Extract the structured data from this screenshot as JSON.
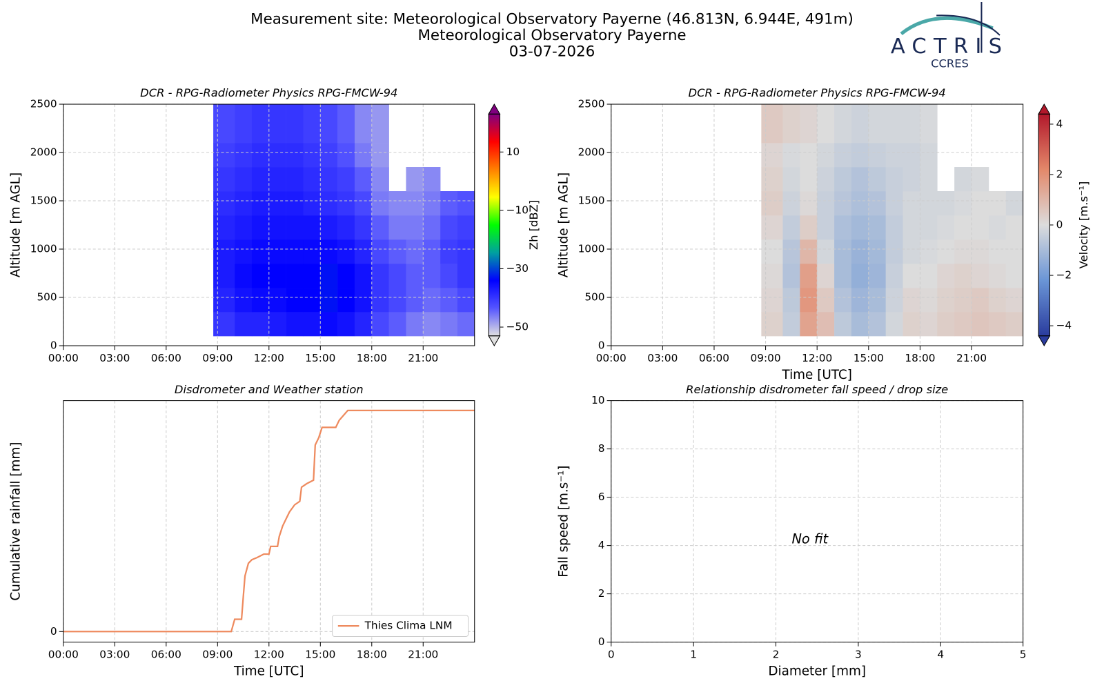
{
  "header": {
    "lines": [
      "Measurement site: Meteorological Observatory Payerne (46.813N, 6.944E, 491m)",
      "Meteorological Observatory Payerne",
      "03-07-2026"
    ]
  },
  "logo": {
    "name": "ACTRIS",
    "sub": "CCRES"
  },
  "chart_data": [
    {
      "type": "heatmap",
      "title": "DCR - RPG-Radiometer Physics RPG-FMCW-94",
      "ylabel": "Altitude [m AGL]",
      "xlim": [
        0,
        24
      ],
      "ylim": [
        0,
        2500
      ],
      "xticks": [
        {
          "value": 0,
          "label": "00:00"
        },
        {
          "value": 3,
          "label": "03:00"
        },
        {
          "value": 6,
          "label": "06:00"
        },
        {
          "value": 9,
          "label": "09:00"
        },
        {
          "value": 12,
          "label": "12:00"
        },
        {
          "value": 15,
          "label": "15:00"
        },
        {
          "value": 18,
          "label": "18:00"
        },
        {
          "value": 21,
          "label": "21:00"
        }
      ],
      "yticks": [
        0,
        500,
        1000,
        1500,
        2000,
        2500
      ],
      "grid": true,
      "x_edges": [
        8.75,
        10,
        11,
        12,
        13,
        14,
        15,
        16,
        17,
        18,
        19,
        20,
        21,
        22,
        23,
        24
      ],
      "y_edges": [
        100,
        350,
        600,
        850,
        1100,
        1350,
        1600,
        1850,
        2100,
        2500
      ],
      "z": [
        [
          -40,
          -38,
          -38,
          -37,
          -36,
          -36,
          -35,
          -36,
          -38,
          -42,
          -44,
          -46,
          -47,
          -46,
          -45
        ],
        [
          -38,
          -36,
          -35,
          -35,
          -34,
          -34,
          -33,
          -34,
          -36,
          -40,
          -42,
          -44,
          -45,
          -44,
          -42
        ],
        [
          -37,
          -35,
          -34,
          -34,
          -34,
          -34,
          -33,
          -34,
          -36,
          -40,
          -42,
          -44,
          -44,
          -42,
          -40
        ],
        [
          -37,
          -36,
          -35,
          -35,
          -35,
          -35,
          -35,
          -36,
          -38,
          -42,
          -44,
          -45,
          -44,
          -41,
          -40
        ],
        [
          -38,
          -37,
          -36,
          -36,
          -36,
          -36,
          -37,
          -38,
          -40,
          -44,
          -46,
          -46,
          -45,
          -42,
          -41
        ],
        [
          -39,
          -38,
          -37,
          -37,
          -37,
          -38,
          -39,
          -40,
          -42,
          -46,
          -47,
          -47,
          -46,
          -44,
          -43
        ],
        [
          -40,
          -39,
          -38,
          -38,
          -38,
          -39,
          -40,
          -41,
          -44,
          -47,
          null,
          -48,
          -47,
          null,
          null
        ],
        [
          -41,
          -40,
          -39,
          -39,
          -39,
          -40,
          -41,
          -43,
          -46,
          -48,
          null,
          null,
          null,
          null,
          null
        ],
        [
          -42,
          -41,
          -40,
          -40,
          -40,
          -41,
          -42,
          -44,
          -47,
          -48,
          null,
          null,
          null,
          null,
          null
        ]
      ],
      "zlim": [
        -53,
        23
      ],
      "colormap": [
        "#e0e0e0",
        "#5555ff",
        "#0000ff",
        "#00a0a0",
        "#00ff00",
        "#ffff00",
        "#ff8000",
        "#ff0000",
        "#800080"
      ],
      "colorbar_label": "Zh [dBZ]",
      "colorbar_ticks": [
        {
          "value": -50,
          "label": "−50"
        },
        {
          "value": -30,
          "label": "−30"
        },
        {
          "value": -10,
          "label": "−10"
        },
        10
      ]
    },
    {
      "type": "heatmap",
      "title": "DCR - RPG-Radiometer Physics RPG-FMCW-94",
      "ylabel": "Altitude [m AGL]",
      "xlabel": "Time [UTC]",
      "xlim": [
        0,
        24
      ],
      "ylim": [
        0,
        2500
      ],
      "xticks": [
        {
          "value": 0,
          "label": "00:00"
        },
        {
          "value": 3,
          "label": "03:00"
        },
        {
          "value": 6,
          "label": "06:00"
        },
        {
          "value": 9,
          "label": "09:00"
        },
        {
          "value": 12,
          "label": "12:00"
        },
        {
          "value": 15,
          "label": "15:00"
        },
        {
          "value": 18,
          "label": "18:00"
        },
        {
          "value": 21,
          "label": "21:00"
        }
      ],
      "yticks": [
        0,
        500,
        1000,
        1500,
        2000,
        2500
      ],
      "grid": true,
      "x_edges": [
        8.75,
        10,
        11,
        12,
        13,
        14,
        15,
        16,
        17,
        18,
        19,
        20,
        21,
        22,
        23,
        24
      ],
      "y_edges": [
        100,
        350,
        600,
        850,
        1100,
        1350,
        1600,
        1850,
        2100,
        2500
      ],
      "z": [
        [
          0.3,
          -0.5,
          1.5,
          0.8,
          -0.6,
          -1.0,
          -0.8,
          -0.2,
          0.3,
          0.2,
          0.4,
          0.5,
          0.6,
          0.5,
          0.4
        ],
        [
          0.2,
          -0.6,
          1.8,
          0.5,
          -0.8,
          -1.2,
          -1.0,
          -0.3,
          0.2,
          0.1,
          0.3,
          0.4,
          0.5,
          0.3,
          0.2
        ],
        [
          0.1,
          -0.8,
          1.6,
          0.2,
          -1.0,
          -1.4,
          -1.2,
          -0.4,
          0.0,
          0.0,
          0.2,
          0.3,
          0.2,
          0.1,
          0.0
        ],
        [
          0.0,
          -0.7,
          1.0,
          -0.2,
          -1.0,
          -1.3,
          -1.1,
          -0.5,
          -0.2,
          -0.1,
          0.0,
          0.1,
          0.1,
          0.0,
          0.0
        ],
        [
          0.2,
          -0.5,
          0.4,
          -0.4,
          -0.9,
          -1.1,
          -1.0,
          -0.5,
          -0.2,
          -0.2,
          -0.1,
          0.0,
          0.0,
          -0.1,
          0.0
        ],
        [
          0.4,
          -0.3,
          0.1,
          -0.4,
          -0.7,
          -0.9,
          -0.8,
          -0.4,
          -0.2,
          -0.2,
          -0.2,
          -0.1,
          0.0,
          0.0,
          -0.2
        ],
        [
          0.3,
          -0.2,
          0.0,
          -0.3,
          -0.6,
          -0.8,
          -0.6,
          -0.4,
          -0.3,
          -0.2,
          null,
          -0.2,
          -0.1,
          null,
          null
        ],
        [
          0.2,
          -0.1,
          0.0,
          -0.2,
          -0.4,
          -0.5,
          -0.4,
          -0.3,
          -0.3,
          -0.2,
          null,
          null,
          null,
          null,
          null
        ],
        [
          0.5,
          0.3,
          0.2,
          0.0,
          -0.2,
          -0.3,
          -0.2,
          -0.2,
          -0.2,
          -0.1,
          null,
          null,
          null,
          null,
          null
        ]
      ],
      "zlim": [
        -4.4,
        4.4
      ],
      "colormap": [
        "#2a3c9e",
        "#6a95d6",
        "#dcdcdc",
        "#e3886a",
        "#b2182b"
      ],
      "colorbar_label": "Velocity [m.s⁻¹]",
      "colorbar_ticks": [
        {
          "value": -4,
          "label": "−4"
        },
        {
          "value": -2,
          "label": "−2"
        },
        0,
        2,
        4
      ]
    },
    {
      "type": "line",
      "title": "Disdrometer and Weather station",
      "ylabel": "Cumulative rainfall [mm]",
      "xlabel": "Time [UTC]",
      "xlim": [
        0,
        24
      ],
      "ylim": [
        -0.3,
        6.56
      ],
      "xticks": [
        {
          "value": 0,
          "label": "00:00"
        },
        {
          "value": 3,
          "label": "03:00"
        },
        {
          "value": 6,
          "label": "06:00"
        },
        {
          "value": 9,
          "label": "09:00"
        },
        {
          "value": 12,
          "label": "12:00"
        },
        {
          "value": 15,
          "label": "15:00"
        },
        {
          "value": 18,
          "label": "18:00"
        },
        {
          "value": 21,
          "label": "21:00"
        }
      ],
      "yticks": [
        0
      ],
      "grid": true,
      "legend": "lower right",
      "x": [
        0,
        9.8,
        10.0,
        10.4,
        10.5,
        10.6,
        10.8,
        11.0,
        11.3,
        11.7,
        12.0,
        12.1,
        12.5,
        12.6,
        12.8,
        13.0,
        13.2,
        13.5,
        13.8,
        13.9,
        14.2,
        14.6,
        14.7,
        14.9,
        15.1,
        15.9,
        16.1,
        16.6,
        24
      ],
      "series": [
        {
          "name": "Thies Clima LNM",
          "color": "#ee8a5e",
          "values": [
            0,
            0,
            0.35,
            0.35,
            0.98,
            1.58,
            1.94,
            2.04,
            2.1,
            2.2,
            2.2,
            2.42,
            2.42,
            2.7,
            3.0,
            3.2,
            3.4,
            3.6,
            3.7,
            4.1,
            4.2,
            4.3,
            5.3,
            5.5,
            5.8,
            5.8,
            6.0,
            6.28,
            6.28
          ]
        }
      ]
    },
    {
      "type": "scatter",
      "title": "Relationship disdrometer fall speed / drop size",
      "ylabel": "Fall speed [m.s⁻¹]",
      "xlabel": "Diameter [mm]",
      "xlim": [
        0,
        5
      ],
      "ylim": [
        0,
        10
      ],
      "xticks": [
        0,
        1,
        2,
        3,
        4,
        5
      ],
      "yticks": [
        0,
        2,
        4,
        6,
        8,
        10
      ],
      "grid": true,
      "annotation": "No fit"
    }
  ]
}
